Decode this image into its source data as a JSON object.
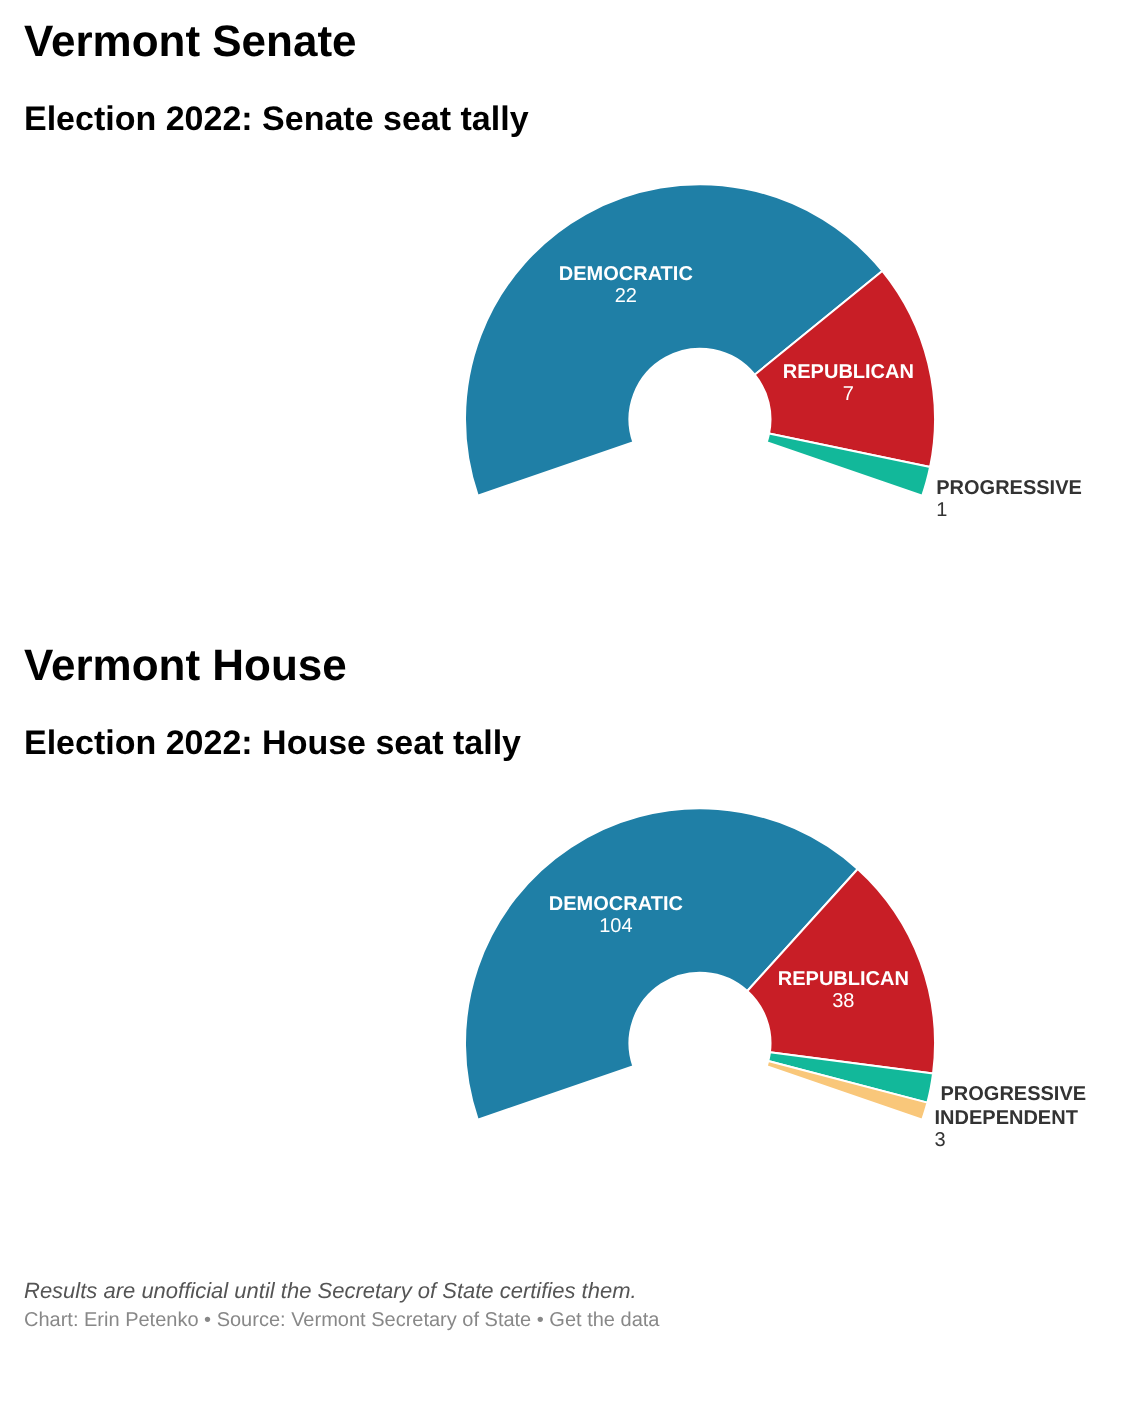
{
  "chart_data": [
    {
      "type": "donut",
      "title": "Vermont Senate",
      "subtitle": "Election 2022: Senate seat tally",
      "categories": [
        "DEMOCRATIC",
        "REPUBLICAN",
        "PROGRESSIVE"
      ],
      "values": [
        22,
        7,
        1
      ],
      "colors": [
        "#1f7fa6",
        "#c81e26",
        "#12b89a"
      ],
      "data_labels": true
    },
    {
      "type": "donut",
      "title": "Vermont House",
      "subtitle": "Election 2022: House seat tally",
      "categories": [
        "DEMOCRATIC",
        "REPUBLICAN",
        "PROGRESSIVE",
        "INDEPENDENT"
      ],
      "values": [
        104,
        38,
        5,
        3
      ],
      "colors": [
        "#1f7fa6",
        "#c81e26",
        "#12b89a",
        "#f9c77a"
      ],
      "value_labels": [
        "104",
        "38",
        null,
        "3"
      ],
      "annotations": [
        "Results are unofficial until the Secretary of State certifies them.",
        "Chart: Erin Petenko • Source: Vermont Secretary of State • Get the data"
      ]
    }
  ]
}
